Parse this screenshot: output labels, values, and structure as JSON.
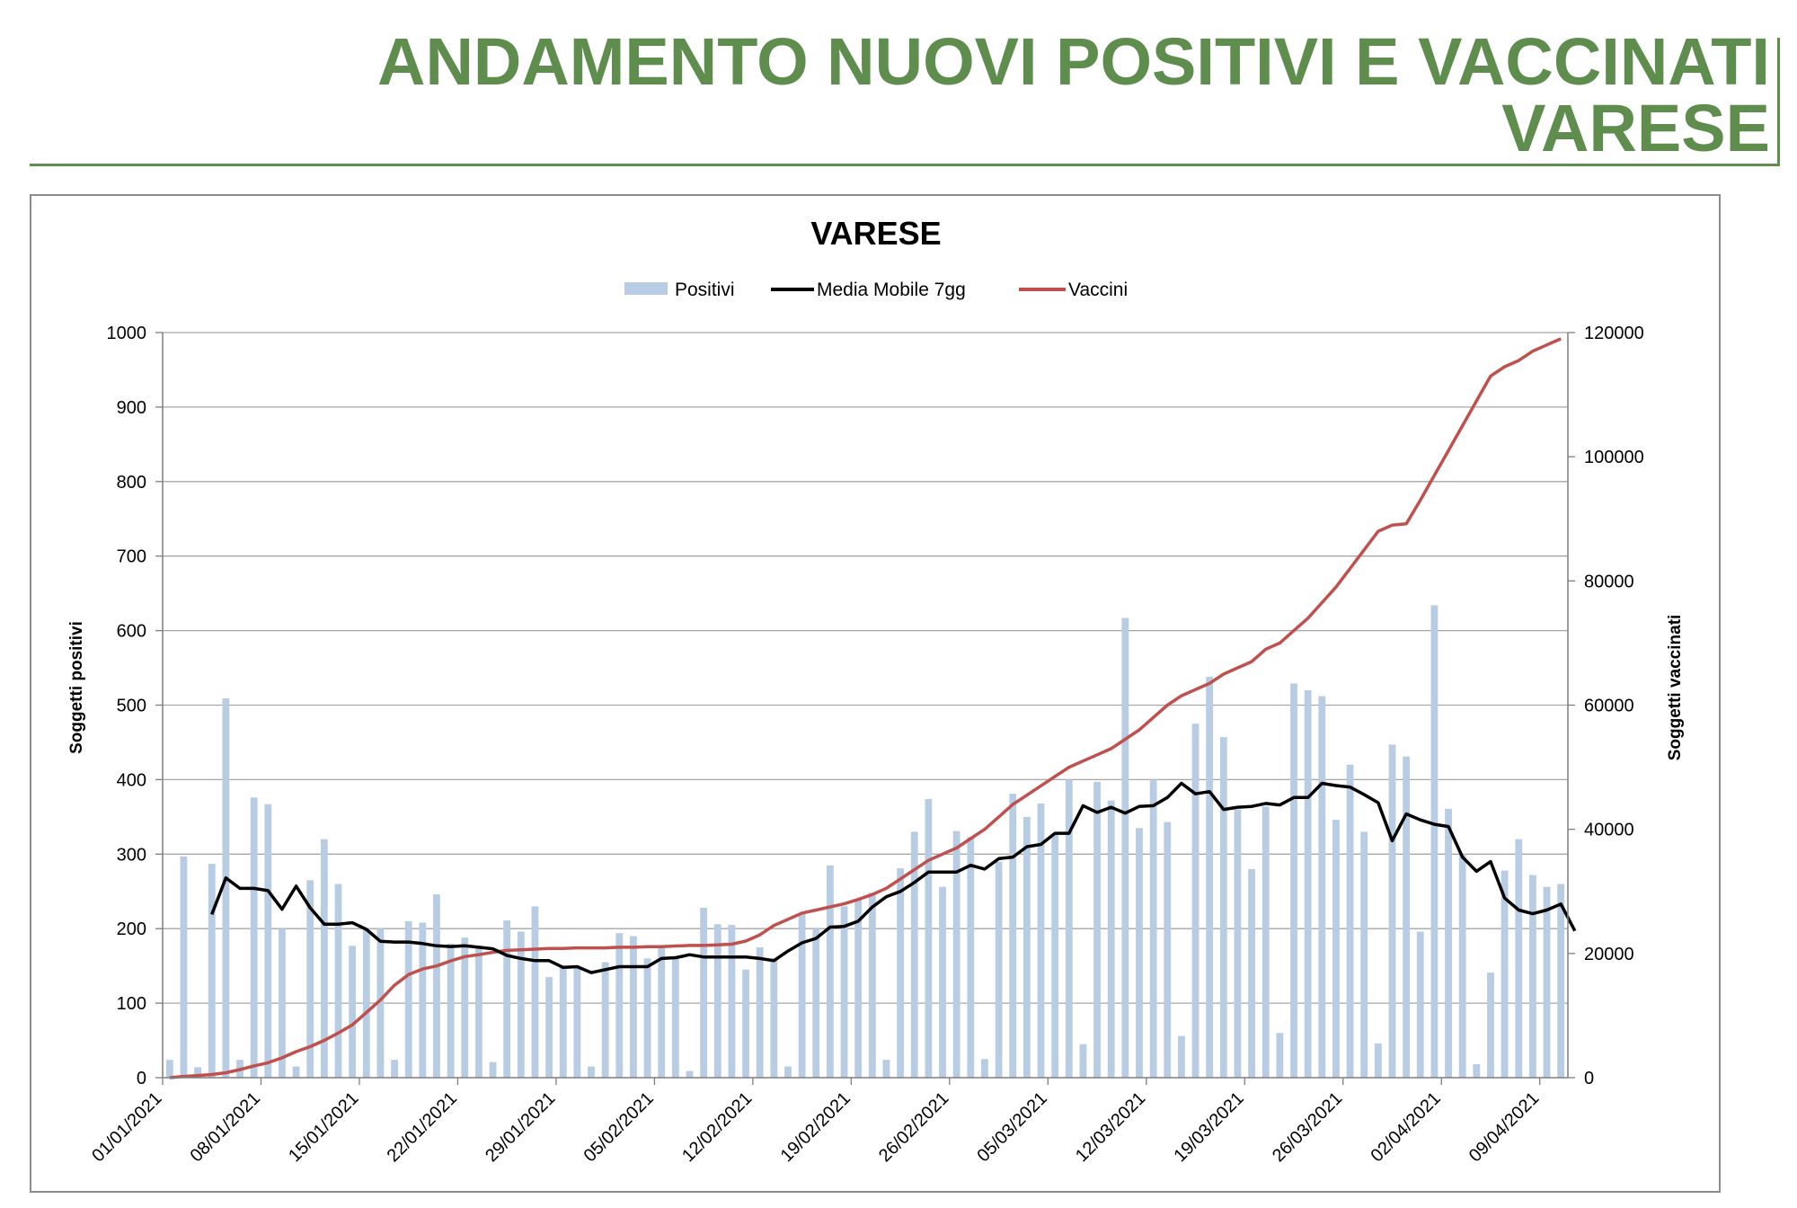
{
  "header": {
    "title_line1": "ANDAMENTO NUOVI POSITIVI E VACCINATI",
    "title_line2": "VARESE"
  },
  "colors": {
    "header_green": "#5e8d4e",
    "bars": "#b8cce4",
    "media_mobile": "#000000",
    "vaccini": "#c0504d",
    "grid": "#a6a6a6"
  },
  "chart_data": {
    "type": "bar+line",
    "title": "VARESE",
    "legend": [
      "Positivi",
      "Media Mobile 7gg",
      "Vaccini"
    ],
    "legend_position": "top",
    "grid": true,
    "ylabel_left": "Soggetti positivi",
    "ylabel_right": "Soggetti vaccinati",
    "ylim_left": [
      0,
      1000
    ],
    "ylim_right": [
      0,
      120000
    ],
    "yticks_left": [
      "0",
      "100",
      "200",
      "300",
      "400",
      "500",
      "600",
      "700",
      "800",
      "900",
      "1000"
    ],
    "yticks_right": [
      "0",
      "20000",
      "40000",
      "60000",
      "80000",
      "100000",
      "120000"
    ],
    "x_start": "2021-01-01",
    "x_end": "2021-04-11",
    "xtick_labels": [
      "01/01/2021",
      "08/01/2021",
      "15/01/2021",
      "22/01/2021",
      "29/01/2021",
      "05/02/2021",
      "12/02/2021",
      "19/02/2021",
      "26/02/2021",
      "05/03/2021",
      "12/03/2021",
      "19/03/2021",
      "26/03/2021",
      "02/04/2021",
      "09/04/2021"
    ],
    "series": [
      {
        "name": "Positivi",
        "type": "bar",
        "axis": "left",
        "values": [
          24,
          297,
          14,
          287,
          509,
          24,
          376,
          367,
          200,
          15,
          265,
          320,
          260,
          177,
          200,
          200,
          24,
          210,
          208,
          246,
          180,
          188,
          176,
          21,
          211,
          196,
          230,
          135,
          150,
          150,
          15,
          155,
          194,
          190,
          160,
          175,
          160,
          9,
          228,
          206,
          205,
          145,
          175,
          160,
          15,
          220,
          200,
          285,
          230,
          240,
          248,
          24,
          281,
          330,
          374,
          256,
          331,
          323,
          25,
          290,
          381,
          350,
          368,
          326,
          400,
          45,
          397,
          372,
          617,
          335,
          400,
          343,
          56,
          475,
          538,
          457,
          360,
          280,
          364,
          60,
          529,
          520,
          512,
          346,
          420,
          330,
          46,
          447,
          431,
          196,
          634,
          361,
          300,
          18,
          141,
          278,
          320,
          272,
          256,
          260
        ]
      },
      {
        "name": "Media Mobile 7gg",
        "type": "line",
        "axis": "left",
        "start_index": 3,
        "values": [
          219,
          268,
          254,
          254,
          251,
          226,
          257,
          228,
          206,
          206,
          208,
          199,
          183,
          182,
          182,
          180,
          177,
          176,
          177,
          175,
          173,
          164,
          160,
          157,
          157,
          148,
          149,
          141,
          145,
          149,
          149,
          149,
          160,
          161,
          165,
          162,
          162,
          162,
          162,
          160,
          157,
          170,
          181,
          187,
          202,
          203,
          210,
          229,
          243,
          250,
          262,
          276,
          276,
          276,
          285,
          280,
          294,
          296,
          310,
          313,
          328,
          328,
          365,
          356,
          363,
          355,
          364,
          365,
          376,
          395,
          381,
          384,
          360,
          363,
          364,
          368,
          366,
          376,
          376,
          395,
          392,
          390,
          380,
          369,
          318,
          354,
          346,
          340,
          337,
          296,
          277,
          290,
          241,
          225,
          220,
          225,
          233,
          197
        ]
      },
      {
        "name": "Vaccini",
        "type": "line",
        "axis": "right",
        "values": [
          0,
          200,
          350,
          500,
          800,
          1300,
          1900,
          2400,
          3200,
          4200,
          5000,
          6000,
          7200,
          8500,
          10500,
          12500,
          14900,
          16600,
          17500,
          18000,
          18800,
          19500,
          19800,
          20200,
          20500,
          20600,
          20700,
          20800,
          20800,
          20900,
          20900,
          20900,
          21000,
          21000,
          21100,
          21100,
          21200,
          21300,
          21300,
          21400,
          21500,
          22000,
          23000,
          24500,
          25500,
          26500,
          27000,
          27500,
          28000,
          28700,
          29500,
          30500,
          32000,
          33500,
          35000,
          36000,
          37000,
          38500,
          40000,
          42000,
          44000,
          45500,
          47000,
          48500,
          50000,
          51000,
          52000,
          53000,
          54500,
          56000,
          58000,
          60000,
          61500,
          62500,
          63500,
          65000,
          66000,
          67000,
          69000,
          70000,
          72000,
          74000,
          76500,
          79000,
          82000,
          85000,
          88000,
          89000,
          89200,
          93000,
          97000,
          101000,
          105000,
          109000,
          113000,
          114500,
          115500,
          117000,
          118000,
          119000
        ]
      }
    ]
  }
}
